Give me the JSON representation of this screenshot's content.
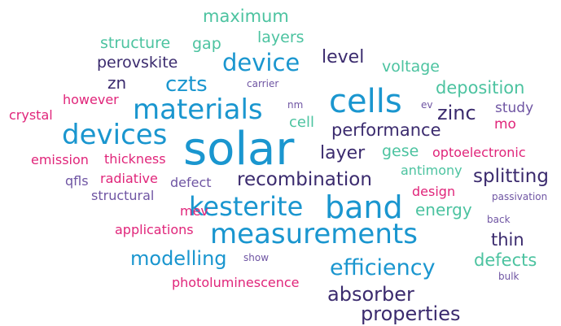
{
  "colors": {
    "blue": "#1a96cf",
    "navy": "#3b2b6e",
    "teal": "#4cc3a0",
    "pink": "#e0257a",
    "purple": "#6f55a3"
  },
  "words": [
    {
      "text": "maximum",
      "color": "teal"
    },
    {
      "text": "structure",
      "color": "teal"
    },
    {
      "text": "gap",
      "color": "teal"
    },
    {
      "text": "layers",
      "color": "teal"
    },
    {
      "text": "perovskite",
      "color": "navy"
    },
    {
      "text": "device",
      "color": "blue"
    },
    {
      "text": "level",
      "color": "navy"
    },
    {
      "text": "voltage",
      "color": "teal"
    },
    {
      "text": "zn",
      "color": "navy"
    },
    {
      "text": "czts",
      "color": "blue"
    },
    {
      "text": "carrier",
      "color": "purple"
    },
    {
      "text": "deposition",
      "color": "teal"
    },
    {
      "text": "however",
      "color": "pink"
    },
    {
      "text": "cells",
      "color": "blue"
    },
    {
      "text": "nm",
      "color": "purple"
    },
    {
      "text": "ev",
      "color": "purple"
    },
    {
      "text": "study",
      "color": "purple"
    },
    {
      "text": "crystal",
      "color": "pink"
    },
    {
      "text": "materials",
      "color": "blue"
    },
    {
      "text": "cell",
      "color": "teal"
    },
    {
      "text": "zinc",
      "color": "navy"
    },
    {
      "text": "mo",
      "color": "pink"
    },
    {
      "text": "devices",
      "color": "blue"
    },
    {
      "text": "performance",
      "color": "navy"
    },
    {
      "text": "solar",
      "color": "blue"
    },
    {
      "text": "layer",
      "color": "navy"
    },
    {
      "text": "gese",
      "color": "teal"
    },
    {
      "text": "optoelectronic",
      "color": "pink"
    },
    {
      "text": "emission",
      "color": "pink"
    },
    {
      "text": "thickness",
      "color": "pink"
    },
    {
      "text": "antimony",
      "color": "teal"
    },
    {
      "text": "splitting",
      "color": "navy"
    },
    {
      "text": "qfls",
      "color": "purple"
    },
    {
      "text": "radiative",
      "color": "pink"
    },
    {
      "text": "defect",
      "color": "purple"
    },
    {
      "text": "recombination",
      "color": "navy"
    },
    {
      "text": "design",
      "color": "pink"
    },
    {
      "text": "structural",
      "color": "purple"
    },
    {
      "text": "passivation",
      "color": "purple"
    },
    {
      "text": "kesterite",
      "color": "blue"
    },
    {
      "text": "band",
      "color": "blue"
    },
    {
      "text": "energy",
      "color": "teal"
    },
    {
      "text": "mev",
      "color": "pink"
    },
    {
      "text": "back",
      "color": "purple"
    },
    {
      "text": "applications",
      "color": "pink"
    },
    {
      "text": "measurements",
      "color": "blue"
    },
    {
      "text": "thin",
      "color": "navy"
    },
    {
      "text": "modelling",
      "color": "blue"
    },
    {
      "text": "show",
      "color": "purple"
    },
    {
      "text": "defects",
      "color": "teal"
    },
    {
      "text": "efficiency",
      "color": "blue"
    },
    {
      "text": "bulk",
      "color": "purple"
    },
    {
      "text": "photoluminescence",
      "color": "pink"
    },
    {
      "text": "absorber",
      "color": "navy"
    },
    {
      "text": "properties",
      "color": "navy"
    }
  ]
}
